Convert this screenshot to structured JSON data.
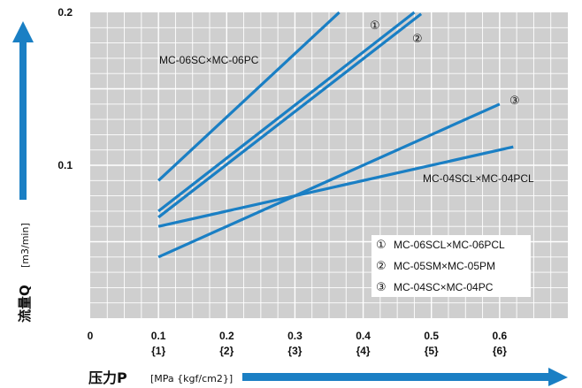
{
  "chart_data": {
    "type": "line",
    "xlim": [
      0,
      0.7
    ],
    "ylim": [
      0,
      0.2
    ],
    "grid": true,
    "y_ticks": [
      {
        "value": 0.1,
        "label": "0.1"
      },
      {
        "value": 0.2,
        "label": "0.2"
      }
    ],
    "x_ticks": [
      {
        "value": 0,
        "label": "0",
        "sub": ""
      },
      {
        "value": 0.1,
        "label": "0.1",
        "sub": "{1}"
      },
      {
        "value": 0.2,
        "label": "0.2",
        "sub": "{2}"
      },
      {
        "value": 0.3,
        "label": "0.3",
        "sub": "{3}"
      },
      {
        "value": 0.4,
        "label": "0.4",
        "sub": "{4}"
      },
      {
        "value": 0.5,
        "label": "0.5",
        "sub": "{5}"
      },
      {
        "value": 0.6,
        "label": "0.6",
        "sub": "{6}"
      }
    ],
    "series": [
      {
        "name": "MC-06SC×MC-06PC",
        "color": "#1a7fc4",
        "x": [
          0.1,
          0.365
        ],
        "y": [
          0.09,
          0.2
        ]
      },
      {
        "name": "MC-06SCL×MC-06PCL",
        "color": "#1a7fc4",
        "x": [
          0.1,
          0.475
        ],
        "y": [
          0.07,
          0.2
        ]
      },
      {
        "name": "MC-05SM×MC-05PM",
        "color": "#1a7fc4",
        "x": [
          0.1,
          0.485
        ],
        "y": [
          0.066,
          0.199
        ]
      },
      {
        "name": "MC-04SC×MC-04PC",
        "color": "#1a7fc4",
        "x": [
          0.1,
          0.6
        ],
        "y": [
          0.04,
          0.14
        ]
      },
      {
        "name": "MC-04SCL×MC-04PCL",
        "color": "#1a7fc4",
        "x": [
          0.1,
          0.62
        ],
        "y": [
          0.06,
          0.112
        ]
      }
    ],
    "annotations": [
      {
        "text": "MC-06SC×MC-06PC"
      },
      {
        "text": "MC-04SCL×MC-04PCL"
      },
      {
        "text": "①"
      },
      {
        "text": "②"
      },
      {
        "text": "③"
      }
    ],
    "legend": {
      "position": "bottom-right",
      "items": [
        {
          "marker": "①",
          "text": "MC-06SCL×MC-06PCL"
        },
        {
          "marker": "②",
          "text": "MC-05SM×MC-05PM"
        },
        {
          "marker": "③",
          "text": "MC-04SC×MC-04PC"
        }
      ]
    },
    "ylabel": {
      "main": "流量Q",
      "unit": "[m3/min]"
    },
    "xlabel": {
      "main": "压力P",
      "unit": "[MPa {kgf/cm2}]"
    }
  }
}
